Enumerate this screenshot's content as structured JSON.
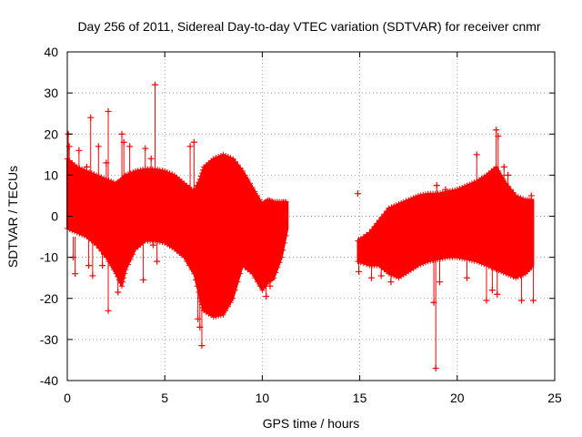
{
  "chart_data": {
    "type": "scatter",
    "title": "Day 256 of 2011, Sidereal Day-to-day VTEC variation (SDTVAR) for receiver cnmr",
    "xlabel": "GPS time / hours",
    "ylabel": "SDTVAR / TECUs",
    "xlim": [
      0,
      25
    ],
    "ylim": [
      -40,
      40
    ],
    "xticks": [
      0,
      5,
      10,
      15,
      20,
      25
    ],
    "yticks": [
      -40,
      -30,
      -20,
      -10,
      0,
      10,
      20,
      30,
      40
    ],
    "grid": true,
    "marker": "+",
    "series_color": "#ff0000",
    "segments": [
      {
        "name": "segment-1",
        "x": [
          0.0,
          0.5,
          1.0,
          1.5,
          2.0,
          2.5,
          2.8,
          3.0,
          3.5,
          4.0,
          4.5,
          5.0,
          5.5,
          6.0,
          6.5,
          6.8,
          7.0,
          7.5,
          8.0,
          8.5,
          9.0,
          9.5,
          10.0,
          10.3,
          10.6,
          11.0,
          11.3
        ],
        "upper": [
          14,
          12,
          11,
          10,
          9,
          8,
          9,
          10,
          11,
          11.5,
          11.5,
          11,
          10,
          8,
          6,
          9,
          12,
          14,
          15,
          14,
          11,
          7,
          3,
          4,
          3.5,
          3.5,
          3.5
        ],
        "lower": [
          -3,
          -4,
          -5,
          -7,
          -10,
          -14,
          -17,
          -13,
          -8,
          -6,
          -6,
          -6.5,
          -8,
          -10,
          -14,
          -20,
          -23,
          -24.5,
          -24,
          -20,
          -12,
          -14,
          -18,
          -16,
          -15,
          -10,
          -3
        ]
      },
      {
        "name": "segment-2",
        "x": [
          14.9,
          15.5,
          16.0,
          16.5,
          17.0,
          17.5,
          18.0,
          18.5,
          19.0,
          19.5,
          20.0,
          20.5,
          21.0,
          21.5,
          22.0,
          22.5,
          23.0,
          23.5,
          23.9
        ],
        "upper": [
          -6,
          -4,
          -1,
          2,
          3,
          4,
          5,
          5.5,
          5.5,
          6,
          6.5,
          7.5,
          8.5,
          10,
          12,
          8,
          5,
          4,
          4
        ],
        "lower": [
          -11,
          -12,
          -12,
          -14,
          -15,
          -13.5,
          -12,
          -11,
          -10.5,
          -10,
          -10,
          -10.5,
          -11,
          -12,
          -13,
          -14,
          -15,
          -14,
          -12
        ]
      }
    ],
    "outliers": [
      {
        "x": 0.05,
        "y": 20
      },
      {
        "x": 0.1,
        "y": 17
      },
      {
        "x": 0.3,
        "y": -10
      },
      {
        "x": 0.4,
        "y": -14
      },
      {
        "x": 0.6,
        "y": 16
      },
      {
        "x": 1.0,
        "y": 12
      },
      {
        "x": 1.1,
        "y": -12
      },
      {
        "x": 1.2,
        "y": 24
      },
      {
        "x": 1.3,
        "y": -14.5
      },
      {
        "x": 1.6,
        "y": 17
      },
      {
        "x": 1.8,
        "y": -12
      },
      {
        "x": 2.0,
        "y": 13
      },
      {
        "x": 2.1,
        "y": 25.5
      },
      {
        "x": 2.1,
        "y": -23
      },
      {
        "x": 2.6,
        "y": -18.5
      },
      {
        "x": 2.8,
        "y": 20
      },
      {
        "x": 2.9,
        "y": 18
      },
      {
        "x": 3.2,
        "y": 17
      },
      {
        "x": 3.5,
        "y": -3
      },
      {
        "x": 3.9,
        "y": -15.5
      },
      {
        "x": 4.0,
        "y": 16.5
      },
      {
        "x": 4.3,
        "y": 14
      },
      {
        "x": 4.4,
        "y": -7
      },
      {
        "x": 4.5,
        "y": 32
      },
      {
        "x": 4.6,
        "y": -11
      },
      {
        "x": 6.3,
        "y": 17
      },
      {
        "x": 6.5,
        "y": 18
      },
      {
        "x": 6.7,
        "y": -25
      },
      {
        "x": 6.8,
        "y": -27
      },
      {
        "x": 6.9,
        "y": -31.5
      },
      {
        "x": 7.1,
        "y": 5
      },
      {
        "x": 7.5,
        "y": -2
      },
      {
        "x": 10.2,
        "y": -19.5
      },
      {
        "x": 10.4,
        "y": -17
      },
      {
        "x": 14.9,
        "y": 5.5
      },
      {
        "x": 14.95,
        "y": -13.5
      },
      {
        "x": 15.6,
        "y": -15
      },
      {
        "x": 16.1,
        "y": -14.5
      },
      {
        "x": 16.6,
        "y": -16
      },
      {
        "x": 18.8,
        "y": -21
      },
      {
        "x": 18.9,
        "y": -37
      },
      {
        "x": 18.95,
        "y": 7.5
      },
      {
        "x": 19.1,
        "y": -16
      },
      {
        "x": 19.4,
        "y": 6.5
      },
      {
        "x": 20.5,
        "y": -15
      },
      {
        "x": 21.0,
        "y": 15
      },
      {
        "x": 21.5,
        "y": -20.5
      },
      {
        "x": 21.8,
        "y": -18
      },
      {
        "x": 22.0,
        "y": 21
      },
      {
        "x": 22.05,
        "y": -19
      },
      {
        "x": 22.1,
        "y": 19.5
      },
      {
        "x": 22.4,
        "y": 12
      },
      {
        "x": 22.6,
        "y": 10
      },
      {
        "x": 22.9,
        "y": -12
      },
      {
        "x": 23.3,
        "y": -20.5
      },
      {
        "x": 23.5,
        "y": -11
      },
      {
        "x": 23.8,
        "y": 5
      },
      {
        "x": 23.9,
        "y": -20.5
      }
    ]
  }
}
